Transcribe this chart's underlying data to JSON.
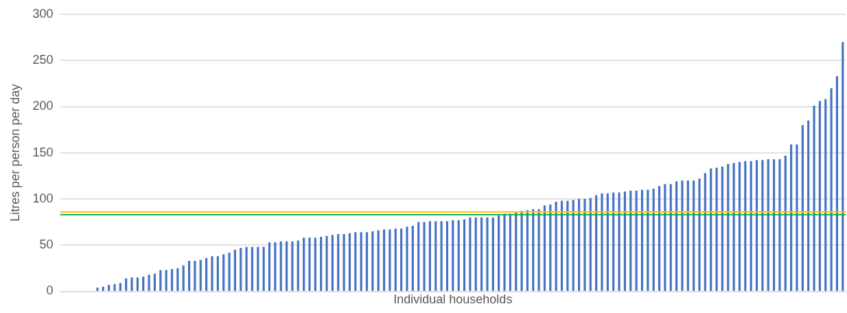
{
  "chart_data": {
    "type": "bar",
    "xlabel": "Individual households",
    "ylabel": "Litres per person per day",
    "categories": [
      null,
      null,
      null,
      null,
      null,
      null,
      null,
      null,
      null,
      null,
      null,
      null,
      null,
      null,
      null,
      null,
      null,
      null,
      null,
      null,
      null,
      null,
      null,
      null,
      null,
      null,
      null,
      null,
      null,
      null,
      null,
      null,
      null,
      null,
      null,
      null,
      null,
      null,
      null,
      null,
      null,
      null,
      null,
      null,
      null,
      null,
      null,
      null,
      null,
      null,
      null,
      null,
      null,
      null,
      null,
      null,
      null,
      null,
      null,
      null,
      null,
      null,
      null,
      null,
      null,
      null,
      null,
      null,
      null,
      null,
      null,
      null,
      null,
      null,
      null,
      null,
      null,
      null,
      null,
      null,
      null,
      null,
      null,
      null,
      null,
      null,
      null,
      null,
      null,
      null,
      null,
      null,
      null,
      null,
      null,
      null,
      null,
      null,
      null,
      null,
      null,
      null,
      null,
      null,
      null,
      null,
      null,
      null,
      null,
      null,
      null,
      null,
      null,
      null,
      null,
      null,
      null,
      null,
      null,
      null,
      null,
      null,
      null,
      null,
      null,
      null,
      null,
      null,
      null,
      null,
      null,
      null,
      null,
      null,
      null,
      null,
      null
    ],
    "values": [
      0,
      0,
      0,
      0,
      0,
      0,
      4,
      5,
      7,
      8,
      9,
      14,
      15,
      15,
      16,
      18,
      19,
      23,
      23,
      24,
      25,
      28,
      33,
      33,
      34,
      36,
      38,
      38,
      40,
      42,
      45,
      47,
      48,
      48,
      48,
      48,
      53,
      53,
      54,
      54,
      54,
      55,
      58,
      58,
      58,
      59,
      60,
      61,
      62,
      62,
      63,
      64,
      64,
      64,
      65,
      66,
      67,
      67,
      68,
      68,
      70,
      71,
      75,
      75,
      76,
      76,
      76,
      76,
      77,
      77,
      78,
      80,
      80,
      80,
      80,
      80,
      82,
      84,
      84,
      85,
      87,
      88,
      89,
      89,
      93,
      94,
      97,
      98,
      98,
      99,
      100,
      100,
      101,
      104,
      106,
      106,
      107,
      107,
      108,
      109,
      109,
      110,
      110,
      111,
      114,
      116,
      116,
      119,
      120,
      120,
      120,
      122,
      128,
      133,
      134,
      135,
      138,
      139,
      140,
      141,
      141,
      142,
      142,
      143,
      143,
      143,
      147,
      159,
      159,
      180,
      185,
      201,
      206,
      208,
      220,
      233,
      270
    ],
    "color": "#4472c4",
    "ylim": [
      0,
      300
    ],
    "yticks": [
      0,
      50,
      100,
      150,
      200,
      250,
      300
    ],
    "grid": "y",
    "tick_labels": "y",
    "ref_lines": [
      {
        "axis": "y",
        "value": 86,
        "color": "#ffc000"
      },
      {
        "axis": "y",
        "value": 83,
        "color": "#00b050"
      }
    ]
  }
}
